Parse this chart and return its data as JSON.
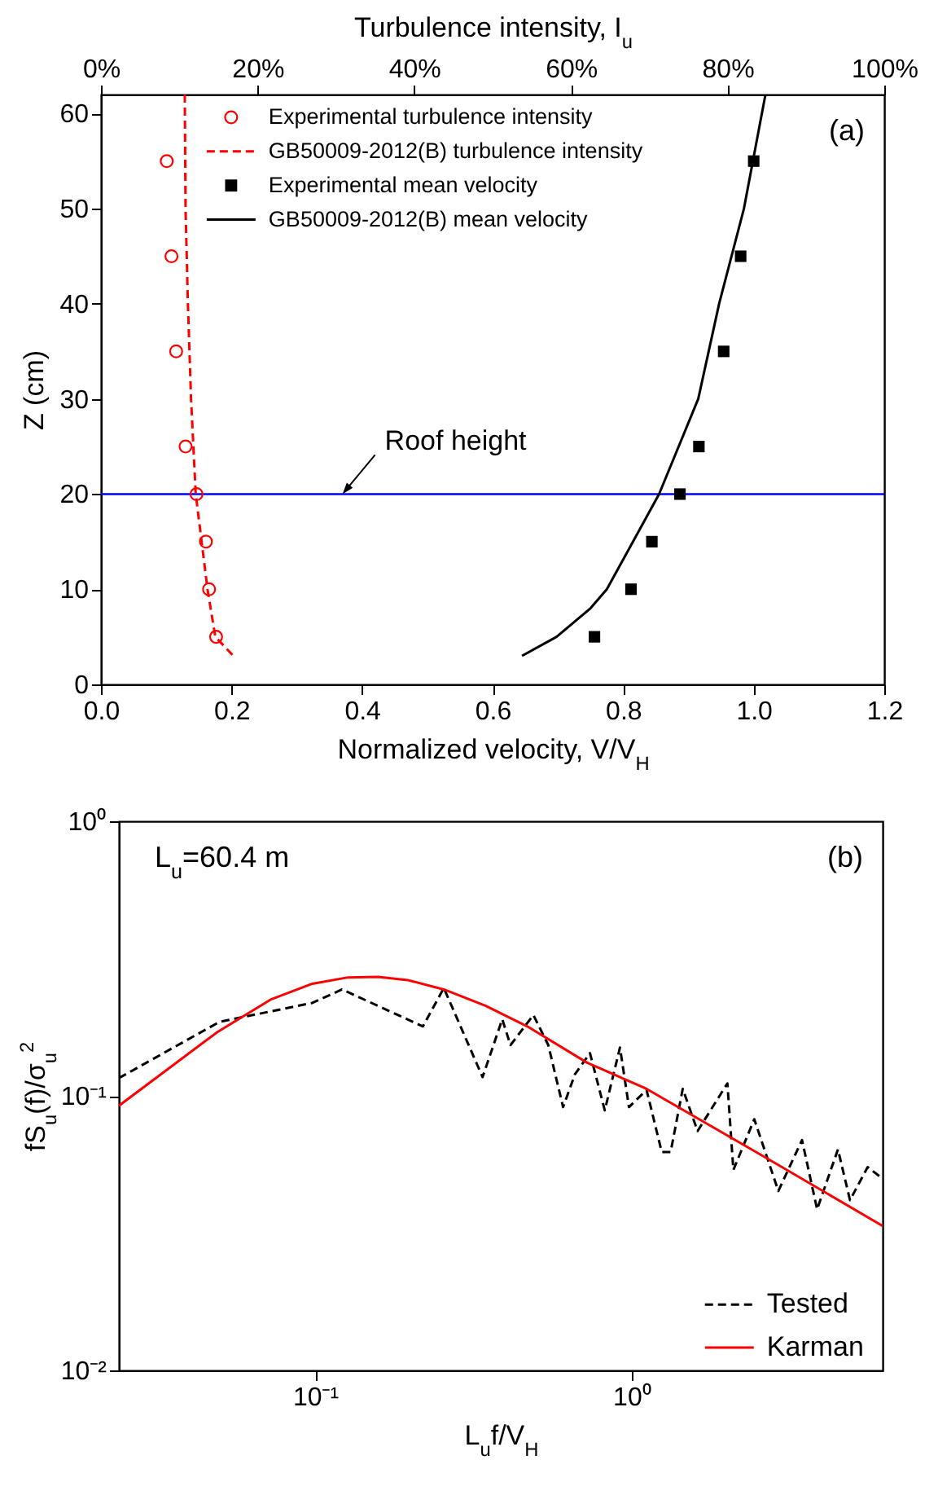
{
  "chart_data": [
    {
      "type": "line",
      "xlabel": "Normalized velocity, V/V$_{H}$",
      "ylabel": "Z (cm)",
      "x2label": "Turbulence intensity, I$_{u}$",
      "xlim": [
        0,
        1.2
      ],
      "xticks": [
        {
          "value": 0,
          "label": "0.0"
        },
        0.2,
        0.4,
        0.6,
        0.8,
        {
          "value": 1,
          "label": "1.0"
        },
        1.2
      ],
      "x2lim": [
        0,
        100
      ],
      "x2ticks": [
        {
          "value": 0,
          "label": "0%"
        },
        {
          "value": 20,
          "label": "20%"
        },
        {
          "value": 40,
          "label": "40%"
        },
        {
          "value": 60,
          "label": "60%"
        },
        {
          "value": 80,
          "label": "80%"
        },
        {
          "value": 100,
          "label": "100%"
        }
      ],
      "ylim": [
        0,
        62
      ],
      "yticks": [
        0,
        10,
        20,
        30,
        40,
        50,
        60
      ],
      "legend": "top left",
      "series": [
        {
          "name": "Experimental turbulence intensity",
          "type": "scatter",
          "marker": "circle",
          "axis": "x2",
          "color": "#ff0000",
          "x": [
            14.7,
            13.8,
            13.4,
            12.2,
            10.8,
            9.6,
            9.0,
            8.4
          ],
          "values": [
            5,
            10,
            15,
            20,
            25,
            35,
            45,
            55
          ]
        },
        {
          "name": "GB50009-2012(B) turbulence intensity",
          "type": "line",
          "line_style": "dashed",
          "axis": "x2",
          "color": "#ff0000",
          "x": [
            16.9,
            14.6,
            13.6,
            12.1,
            11.5,
            11.1,
            10.8,
            10.7
          ],
          "values": [
            3,
            5,
            10,
            20,
            30,
            40,
            50,
            62
          ]
        },
        {
          "name": "Experimental mean velocity",
          "type": "scatter",
          "marker": "square",
          "color": "#000000",
          "x": [
            0.756,
            0.812,
            0.844,
            0.887,
            0.916,
            0.954,
            0.98,
            1.0
          ],
          "values": [
            5,
            10,
            15,
            20,
            25,
            35,
            45,
            55
          ]
        },
        {
          "name": "GB50009-2012(B) mean velocity",
          "type": "line",
          "color": "#000000",
          "x": [
            0.645,
            0.698,
            0.75,
            0.775,
            0.855,
            0.915,
            0.947,
            0.985,
            1.018
          ],
          "values": [
            3,
            5,
            8,
            10,
            20,
            30,
            40,
            50,
            62
          ]
        }
      ],
      "ref_lines": [
        {
          "axis": "y",
          "value": 20,
          "color": "#0000ff"
        }
      ],
      "annotations": [
        "(a)",
        {
          "text": "Roof height",
          "x": 0.37,
          "y": 20
        }
      ]
    },
    {
      "type": "line",
      "xlabel": "L$_{u}$f/V$_{H}$",
      "ylabel": "fS$_{u}$(f)/σ$_{u}$$^{2}$",
      "log": "xy",
      "xlim": [
        0.024,
        6.2
      ],
      "xticks": [
        {
          "value": 0.1,
          "label": "10⁻¹"
        },
        {
          "value": 1,
          "label": "10⁰"
        }
      ],
      "ylim": [
        0.01,
        1
      ],
      "yticks": [
        {
          "value": 0.01,
          "label": "10⁻²"
        },
        {
          "value": 0.1,
          "label": "10⁻¹"
        },
        {
          "value": 1,
          "label": "10⁰"
        }
      ],
      "legend": "bottom right",
      "series": [
        {
          "name": "Tested",
          "type": "line",
          "line_style": "dashed",
          "color": "#000000",
          "x": [
            0.024,
            0.0499,
            0.098,
            0.1216,
            0.219,
            0.255,
            0.338,
            0.39,
            0.414,
            0.489,
            0.545,
            0.607,
            0.662,
            0.738,
            0.822,
            0.918,
            0.98,
            1.114,
            1.244,
            1.327,
            1.449,
            1.614,
            2.005,
            2.094,
            2.438,
            2.904,
            3.45,
            3.85,
            4.48,
            4.89,
            5.56,
            6.2
          ],
          "values": [
            0.116,
            0.186,
            0.218,
            0.244,
            0.179,
            0.247,
            0.117,
            0.19,
            0.153,
            0.197,
            0.153,
            0.091,
            0.12,
            0.143,
            0.0885,
            0.15,
            0.091,
            0.105,
            0.0624,
            0.0624,
            0.106,
            0.0744,
            0.111,
            0.0537,
            0.0822,
            0.045,
            0.069,
            0.0386,
            0.0638,
            0.0417,
            0.055,
            0.0499
          ]
        },
        {
          "name": "Karman",
          "type": "line",
          "color": "#ff0000",
          "x": [
            0.024,
            0.0489,
            0.0723,
            0.098,
            0.127,
            0.158,
            0.196,
            0.255,
            0.345,
            0.468,
            0.723,
            1.114,
            2.66,
            6.2
          ],
          "values": [
            0.092,
            0.17,
            0.224,
            0.256,
            0.27,
            0.271,
            0.264,
            0.244,
            0.213,
            0.179,
            0.132,
            0.106,
            0.0594,
            0.0336
          ]
        }
      ],
      "annotations": [
        "L$_{u}$=60.4 m",
        "(b)"
      ]
    }
  ]
}
